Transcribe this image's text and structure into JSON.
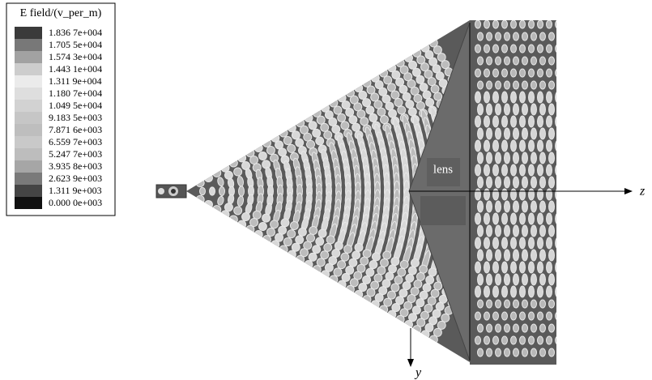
{
  "legend": {
    "title": "E field/(v_per_m)",
    "entries": [
      {
        "label": "1.836 7e+004",
        "color": "#3a3a3a"
      },
      {
        "label": "1.705 5e+004",
        "color": "#787878"
      },
      {
        "label": "1.574 3e+004",
        "color": "#a2a2a2"
      },
      {
        "label": "1.443 1e+004",
        "color": "#cdcdcd"
      },
      {
        "label": "1.311 9e+004",
        "color": "#ebebeb"
      },
      {
        "label": "1.180 7e+004",
        "color": "#dedede"
      },
      {
        "label": "1.049 5e+004",
        "color": "#d2d2d2"
      },
      {
        "label": "9.183 5e+003",
        "color": "#c6c6c6"
      },
      {
        "label": "7.871 6e+003",
        "color": "#bebebe"
      },
      {
        "label": "6.559 7e+003",
        "color": "#c9c9c9"
      },
      {
        "label": "5.247 7e+003",
        "color": "#bdbdbd"
      },
      {
        "label": "3.935 8e+003",
        "color": "#a6a6a6"
      },
      {
        "label": "2.623 9e+003",
        "color": "#7a7a7a"
      },
      {
        "label": "1.311 9e+003",
        "color": "#454545"
      },
      {
        "label": "0.000 0e+003",
        "color": "#111111"
      }
    ]
  },
  "annotations": {
    "lens": "lens",
    "z_axis": "z",
    "y_axis": "y"
  }
}
